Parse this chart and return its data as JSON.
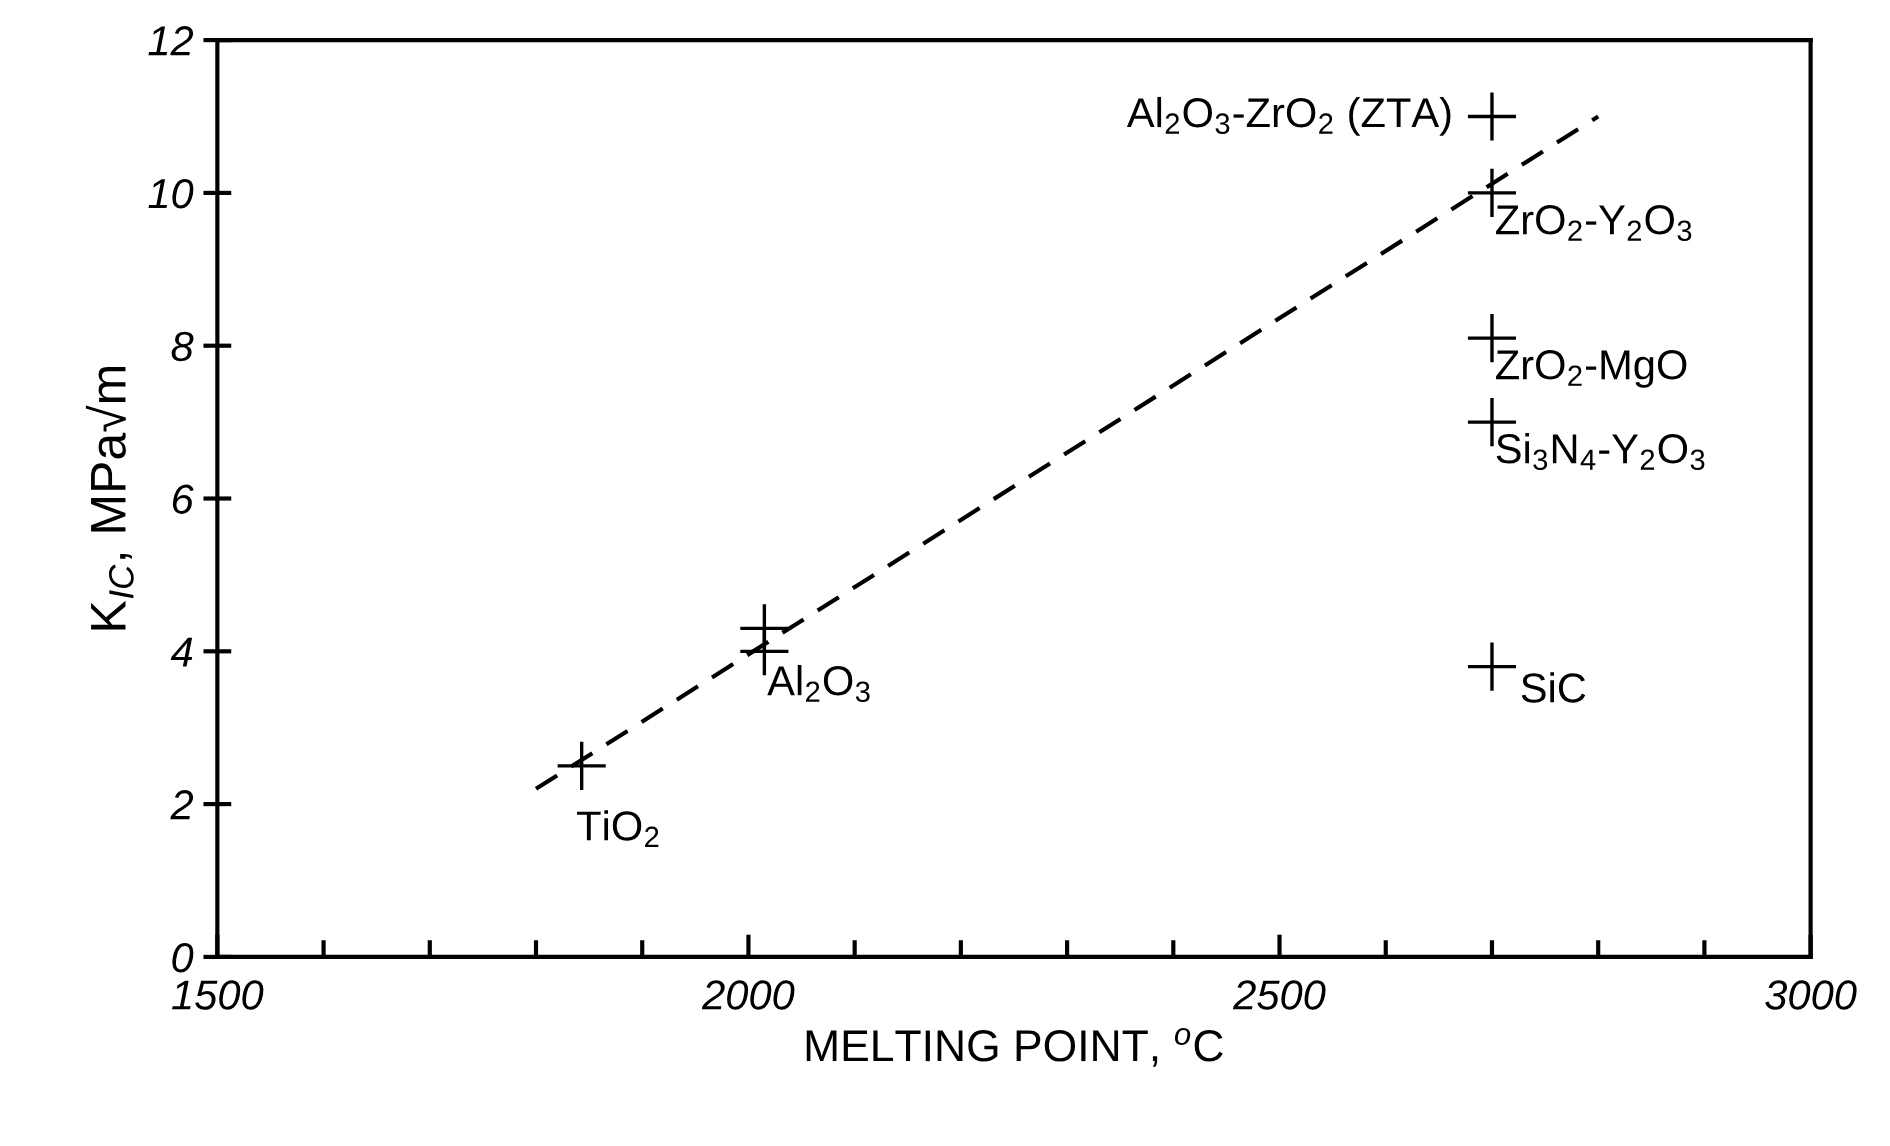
{
  "chart_data": {
    "type": "scatter",
    "xlabel": "MELTING POINT, $^{o}$C",
    "ylabel": "K$_{IC}$, MPa√m",
    "series": [
      {
        "color": "#000000",
        "marker": "cross",
        "x": [
          1843,
          2015,
          2015,
          2700,
          2700,
          2700,
          2700,
          2700
        ],
        "values": [
          2.5,
          4.0,
          4.3,
          11.0,
          10.0,
          8.1,
          7.0,
          3.8
        ]
      },
      {
        "type": "line",
        "color": "#000000",
        "line_style": "dashed",
        "marker": "none",
        "x": [
          1800,
          2800
        ],
        "values": [
          2.2,
          11.0
        ]
      }
    ],
    "annotations": [
      {
        "text": "TiO$_{2}$",
        "x": 1843,
        "y": 2.5
      },
      {
        "text": "Al$_{2}$O$_{3}$",
        "x": 2015,
        "y": 4.0
      },
      {
        "text": "Al$_{2}$O$_{3}$-ZrO$_{2}$ (ZTA)",
        "x": 2700,
        "y": 11.0
      },
      {
        "text": "ZrO$_{2}$-Y$_{2}$O$_{3}$",
        "x": 2700,
        "y": 10.0
      },
      {
        "text": "ZrO$_{2}$-MgO",
        "x": 2700,
        "y": 8.1
      },
      {
        "text": "Si$_{3}$N$_{4}$-Y$_{2}$O$_{3}$",
        "x": 2700,
        "y": 7.0
      },
      {
        "text": "SiC",
        "x": 2700,
        "y": 3.8
      }
    ],
    "xlim": [
      1500,
      3000
    ],
    "xticks": [
      1500,
      2000,
      2500,
      3000
    ],
    "ylim": [
      0,
      12
    ],
    "yticks": [
      0,
      2,
      4,
      6,
      8,
      10,
      12
    ],
    "grid": false,
    "legend": false
  }
}
